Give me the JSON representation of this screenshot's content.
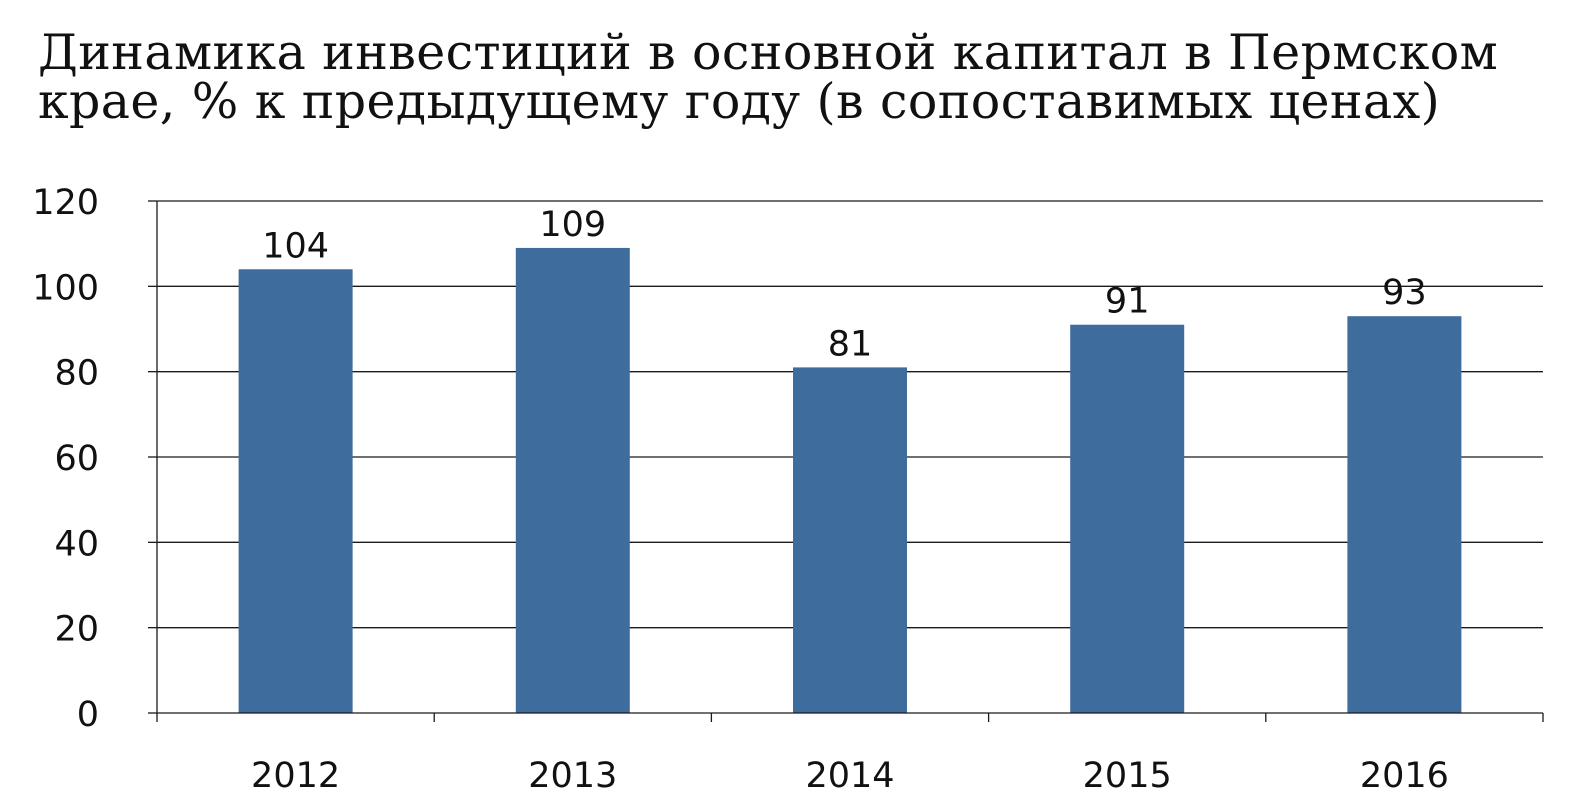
{
  "chart_data": {
    "type": "bar",
    "title": "Динамика инвестиций в основной капитал в Пермском крае, % к предыдущему году (в сопоставимых ценах)",
    "categories": [
      "2012",
      "2013",
      "2014",
      "2015",
      "2016"
    ],
    "values": [
      104,
      109,
      81,
      91,
      93
    ],
    "data_labels": [
      "104",
      "109",
      "81",
      "91",
      "93"
    ],
    "xlabel": "",
    "ylabel": "",
    "ylim": [
      0,
      120
    ],
    "yticks": [
      "0",
      "20",
      "40",
      "60",
      "80",
      "100",
      "120"
    ],
    "grid": true,
    "legend": "none",
    "colors": {
      "bar": "#3e6c9d",
      "grid": "#1a1a1a",
      "text": "#111111"
    }
  }
}
